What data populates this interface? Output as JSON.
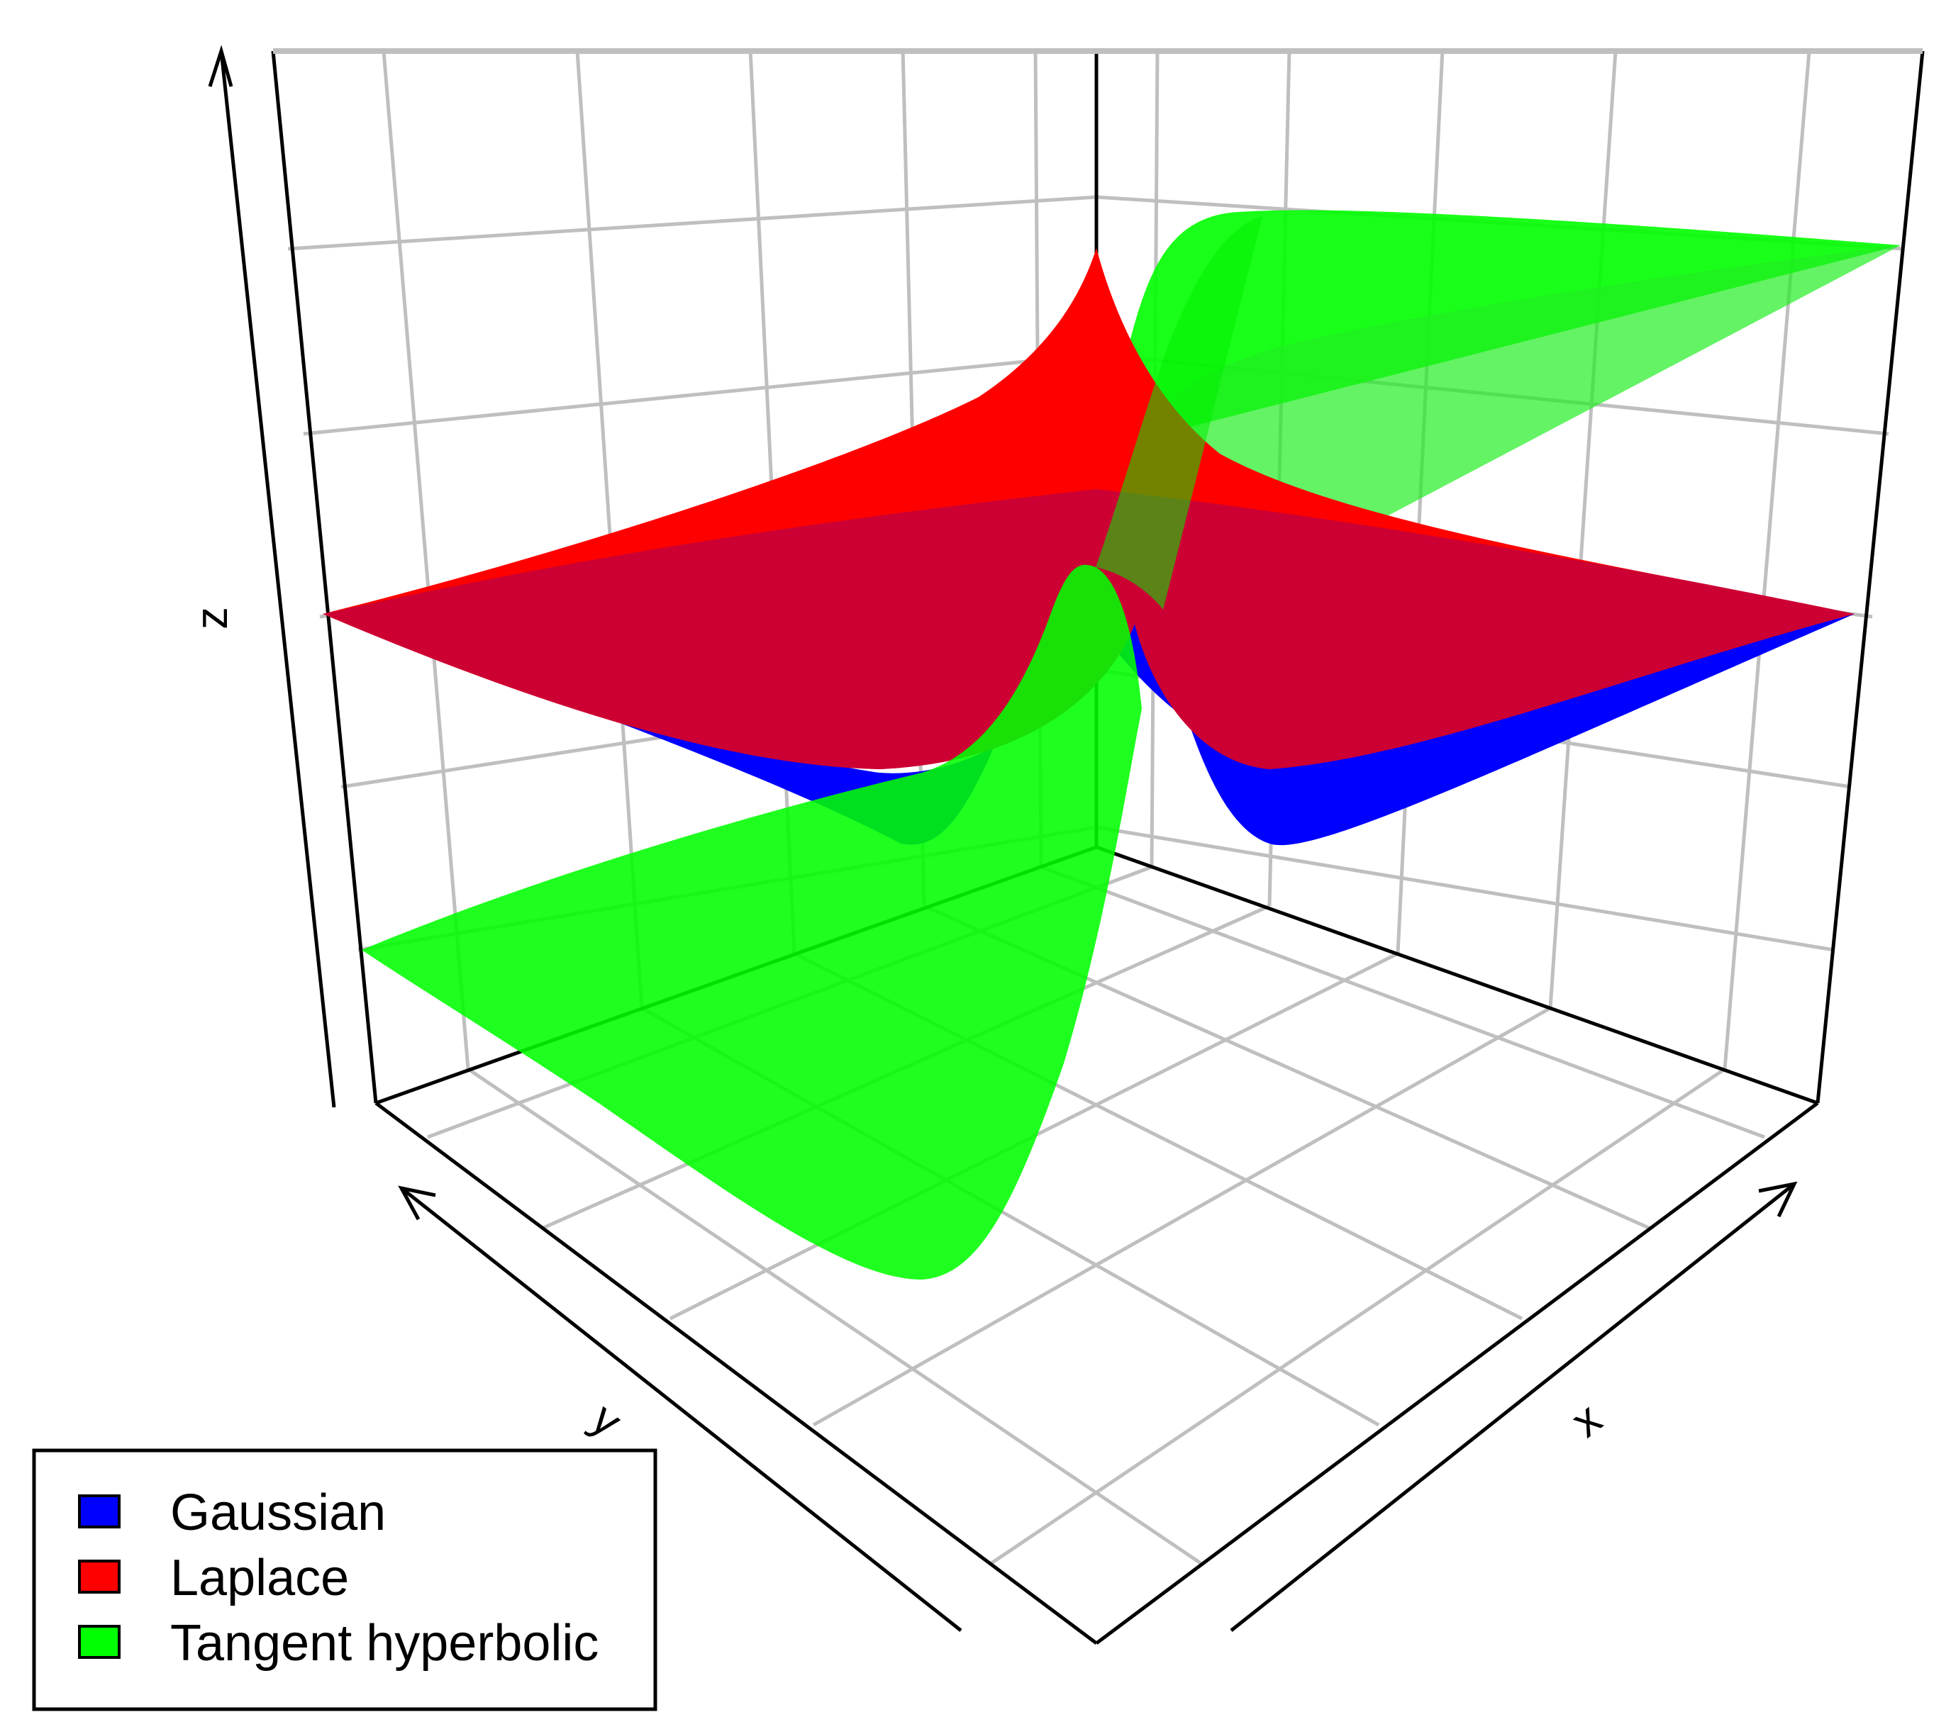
{
  "chart_data": {
    "type": "surface3d",
    "xlabel": "x",
    "ylabel": "y",
    "zlabel": "z",
    "grid": true,
    "legend_position": "bottom-left",
    "surfaces": [
      {
        "name": "Gaussian",
        "color": "#0000FF"
      },
      {
        "name": "Laplace",
        "color": "#FF0000"
      },
      {
        "name": "Tangent hyperbolic",
        "color": "#00FF00"
      }
    ]
  }
}
